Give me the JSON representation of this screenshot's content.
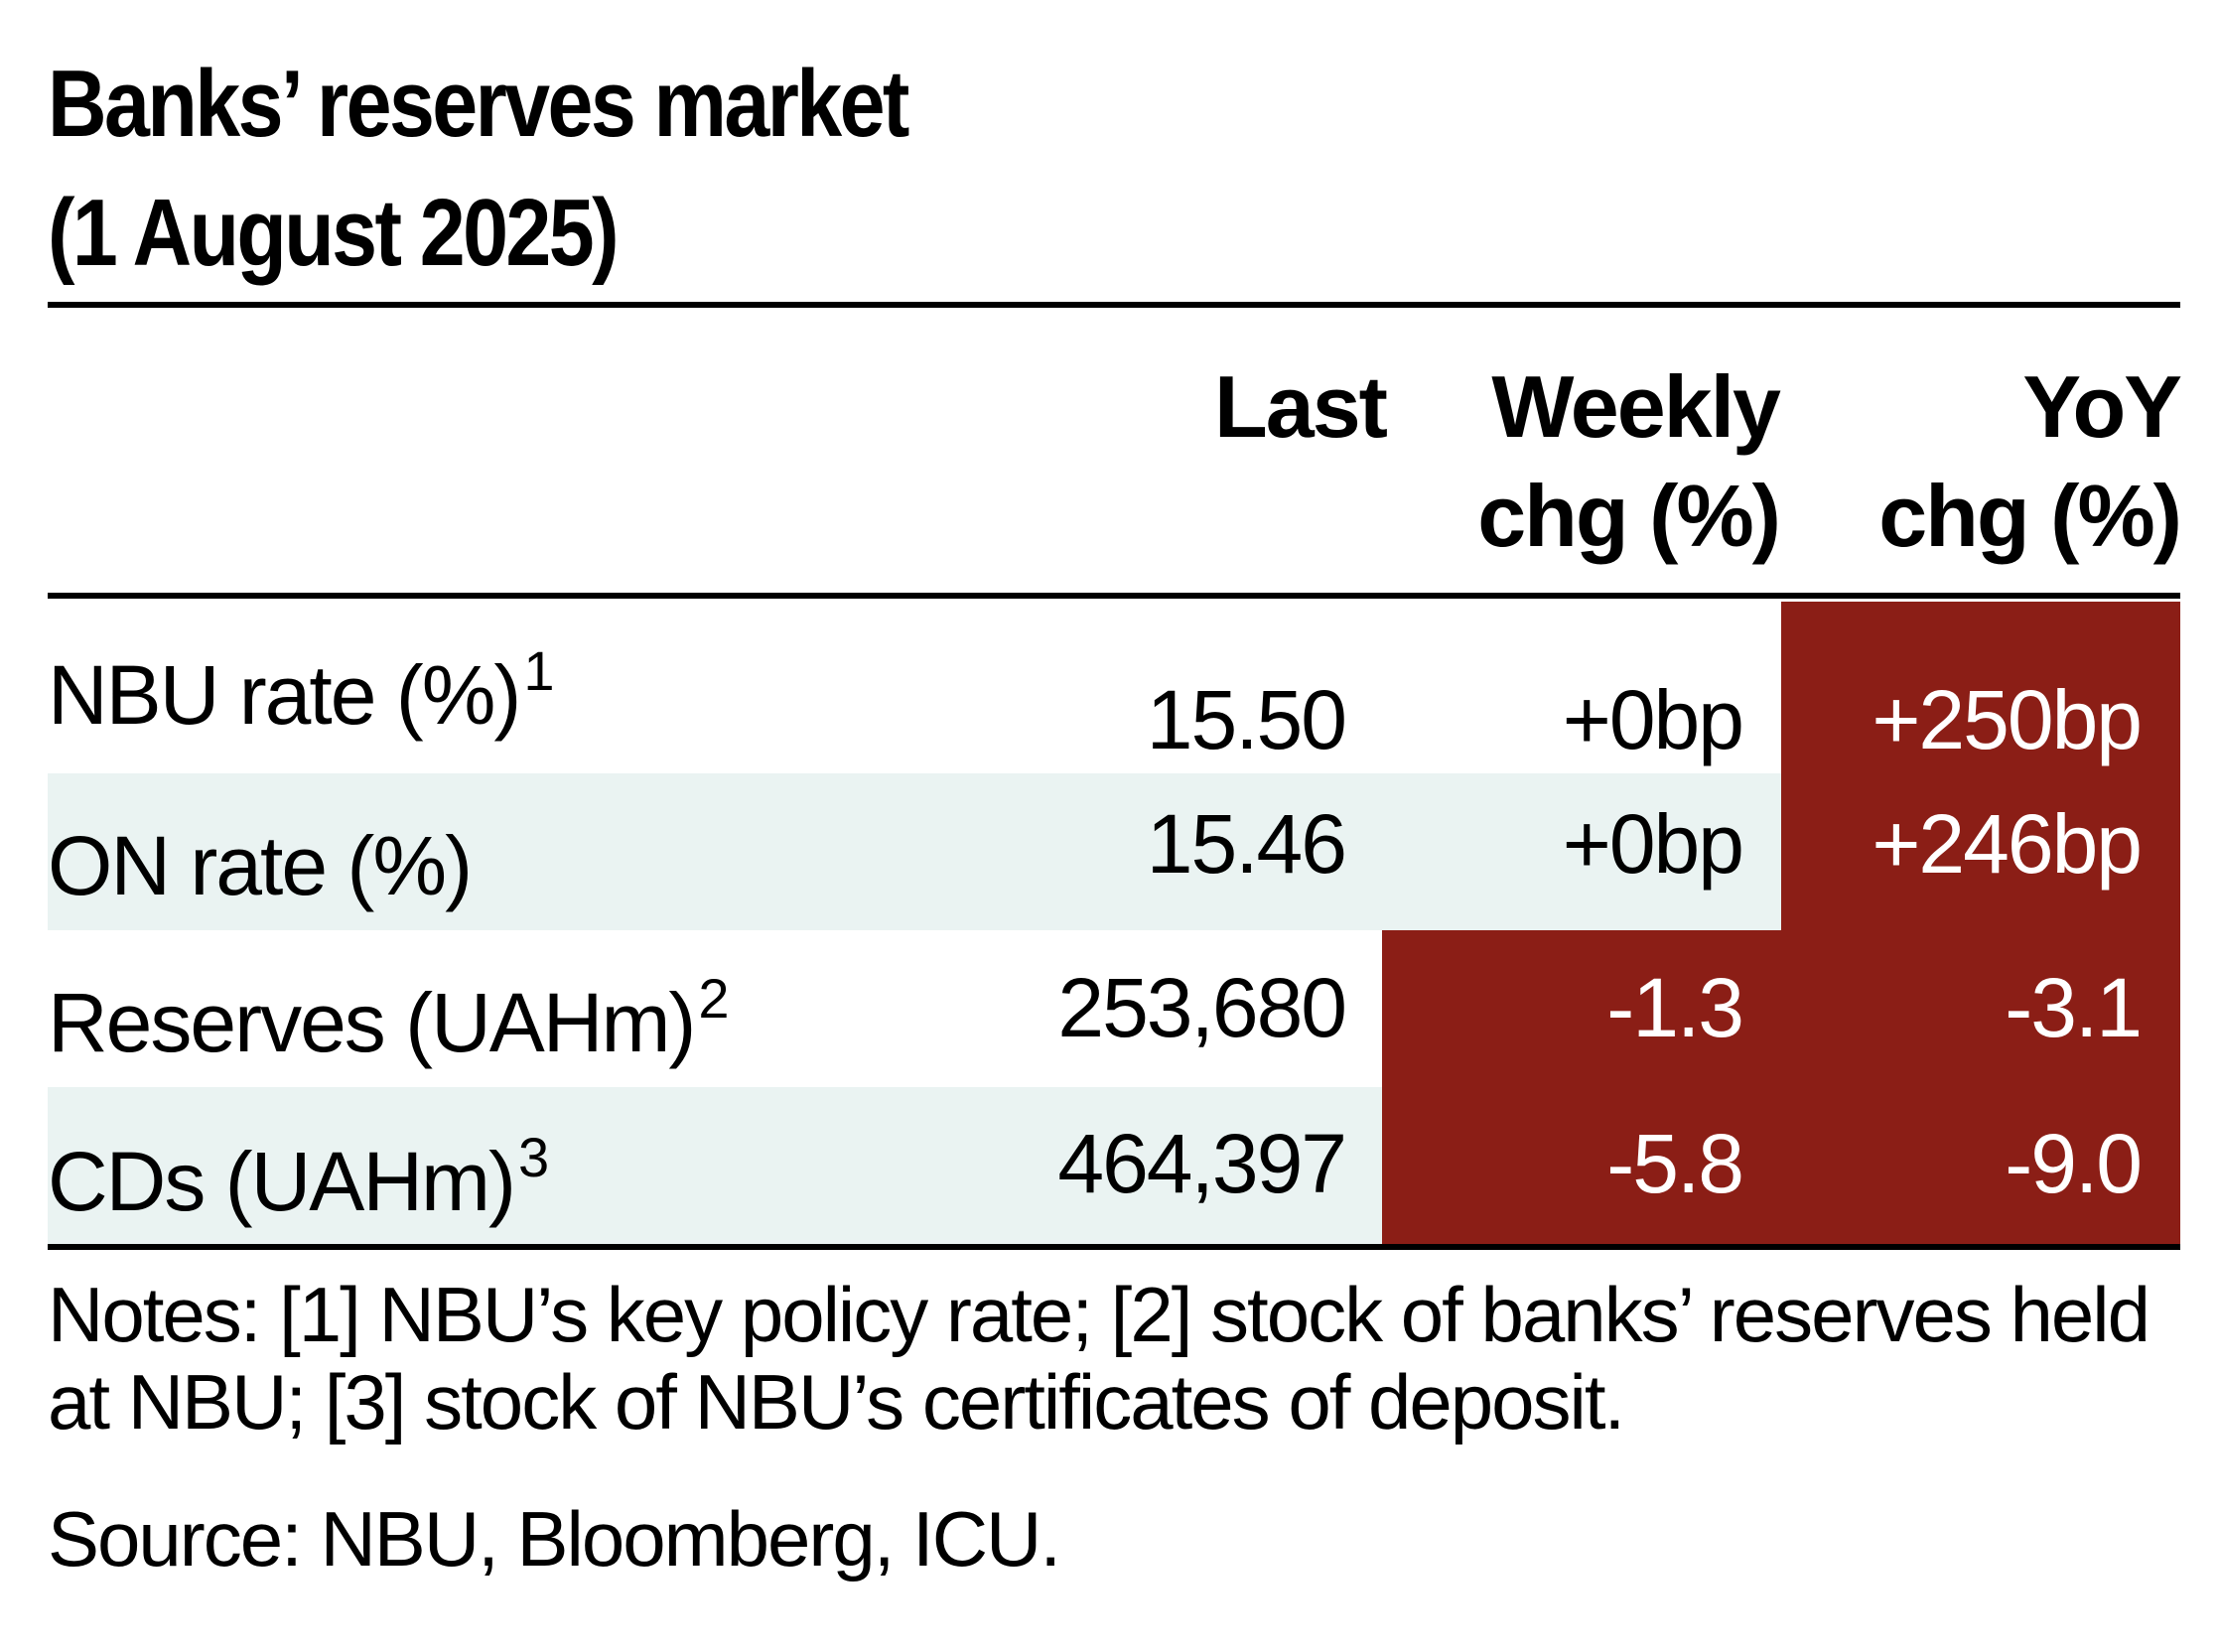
{
  "title_line1": "Banks’ reserves market",
  "title_line2": "(1 August 2025)",
  "columns": {
    "last": "Last",
    "weekly_line1": "Weekly",
    "weekly_line2": "chg (%)",
    "yoy_line1": "YoY",
    "yoy_line2": "chg (%)"
  },
  "rows": [
    {
      "label": "NBU rate (%)",
      "sup": "1",
      "last": "15.50",
      "weekly": "+0bp",
      "yoy": "+250bp"
    },
    {
      "label": "ON rate (%)",
      "sup": "",
      "last": "15.46",
      "weekly": "+0bp",
      "yoy": "+246bp"
    },
    {
      "label": "Reserves (UAHm)",
      "sup": "2",
      "last": "253,680",
      "weekly": "-1.3",
      "yoy": "-3.1"
    },
    {
      "label": "CDs (UAHm)",
      "sup": "3",
      "last": "464,397",
      "weekly": "-5.8",
      "yoy": "-9.0"
    }
  ],
  "notes": "Notes: [1] NBU’s key policy rate; [2] stock of banks’ reserves held at NBU; [3] stock of NBU’s certificates of deposit.",
  "source": "Source: NBU, Bloomberg, ICU.",
  "colors": {
    "negative_highlight": "#8b1e16",
    "row_shade": "#eaf3f2"
  }
}
